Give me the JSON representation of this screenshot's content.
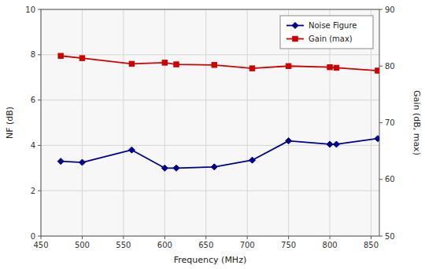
{
  "chart_data": {
    "type": "line",
    "xlabel": "Frequency (MHz)",
    "ylabel": "NF (dB)",
    "y2label": "Gain (dB, max)",
    "x": [
      474,
      500,
      560,
      600,
      614,
      660,
      706,
      750,
      800,
      808,
      858
    ],
    "xlim": [
      450,
      860
    ],
    "xticks": [
      450,
      500,
      550,
      600,
      650,
      700,
      750,
      800,
      850
    ],
    "ylim": [
      0,
      10
    ],
    "yticks": [
      0,
      2,
      4,
      6,
      8,
      10
    ],
    "y2lim": [
      50,
      90
    ],
    "y2ticks": [
      50,
      60,
      70,
      80,
      90
    ],
    "grid": true,
    "legend": "upper right",
    "series": [
      {
        "name": "Noise Figure",
        "color": "#00008B",
        "marker": "diamond",
        "values": [
          3.3,
          3.25,
          3.8,
          3.0,
          3.0,
          3.05,
          3.35,
          4.2,
          4.05,
          4.05,
          4.3
        ]
      },
      {
        "name": "Gain (max)",
        "color": "#CC0000",
        "marker": "square",
        "axis": "y2",
        "values": [
          81.8,
          81.4,
          80.4,
          80.6,
          80.3,
          80.2,
          79.6,
          80.0,
          79.8,
          79.7,
          79.2
        ]
      }
    ]
  }
}
